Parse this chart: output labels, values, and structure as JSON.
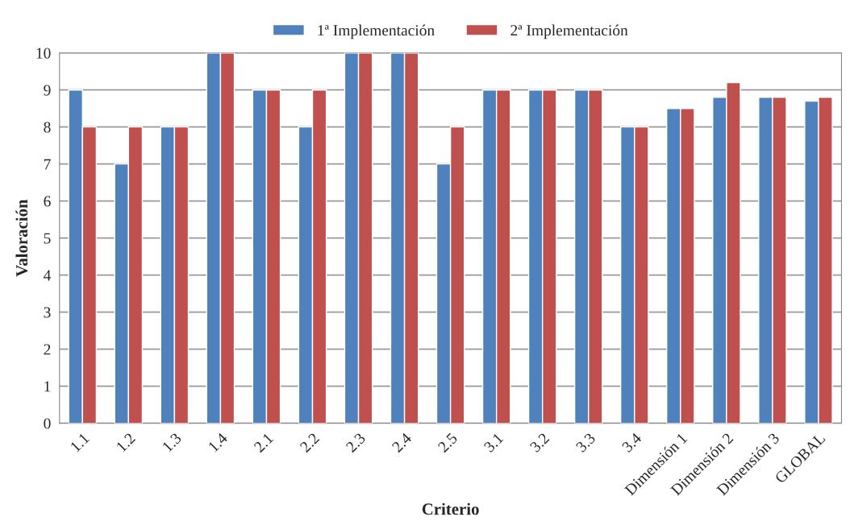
{
  "chart_data": {
    "type": "bar",
    "xlabel": "Criterio",
    "ylabel": "Valoración",
    "categories": [
      "1.1",
      "1.2",
      "1.3",
      "1.4",
      "2.1",
      "2.2",
      "2.3",
      "2.4",
      "2.5",
      "3.1",
      "3.2",
      "3.3",
      "3.4",
      "Dimensión 1",
      "Dimensión 2",
      "Dimensión 3",
      "GLOBAL"
    ],
    "series": [
      {
        "name": "1ª Implementación",
        "color": "#4f81bd",
        "values": [
          9,
          7,
          8,
          10,
          9,
          8,
          10,
          10,
          7,
          9,
          9,
          9,
          8,
          8.5,
          8.8,
          8.8,
          8.7
        ]
      },
      {
        "name": "2ª Implementación",
        "color": "#c0504d",
        "values": [
          8,
          8,
          8,
          10,
          9,
          9,
          10,
          10,
          8,
          9,
          9,
          9,
          8,
          8.5,
          9.2,
          8.8,
          8.8
        ]
      }
    ],
    "ylim": [
      0,
      10
    ],
    "yticks": [
      0,
      1,
      2,
      3,
      4,
      5,
      6,
      7,
      8,
      9,
      10
    ],
    "grid": "y",
    "legend": "top"
  }
}
